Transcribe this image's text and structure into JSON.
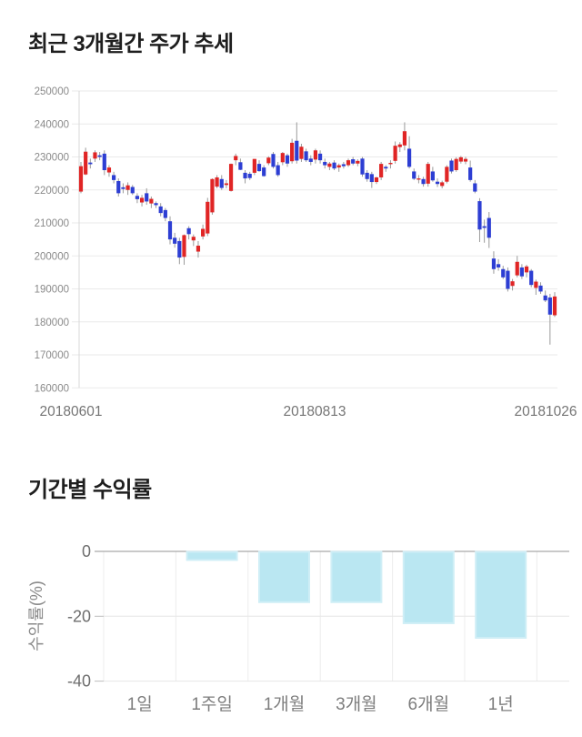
{
  "sections": {
    "price_trend_title": "최근 3개월간 주가 추세",
    "period_returns_title": "기간별 수익률"
  },
  "chart_data": [
    {
      "type": "candlestick",
      "title": "최근 3개월간 주가 추세",
      "ylim": [
        160000,
        250000
      ],
      "y_ticks": [
        250000,
        240000,
        230000,
        220000,
        210000,
        200000,
        190000,
        180000,
        170000,
        160000
      ],
      "x_tick_labels": [
        "20180601",
        "20180813",
        "20181026"
      ],
      "grid": true,
      "colors": {
        "up": "#e02525",
        "down": "#2d3ed3",
        "wick": "#9a9a9a",
        "grid": "#eaeaea",
        "axis": "#d8d8d8",
        "tick_text": "#8a8a8a",
        "x_label_text": "#757575"
      },
      "candles_ohlc": [
        [
          219500,
          228500,
          219000,
          227200
        ],
        [
          224700,
          232800,
          224500,
          231600
        ],
        [
          228300,
          229500,
          226500,
          227800
        ],
        [
          229500,
          232000,
          228500,
          231400
        ],
        [
          230500,
          231500,
          229000,
          230000
        ],
        [
          231000,
          232000,
          224500,
          226000
        ],
        [
          225300,
          227500,
          224000,
          226800
        ],
        [
          224500,
          225500,
          222000,
          223000
        ],
        [
          222700,
          223500,
          218000,
          219000
        ],
        [
          220800,
          222000,
          219000,
          220300
        ],
        [
          220000,
          222300,
          218500,
          221400
        ],
        [
          220900,
          221500,
          218500,
          219000
        ],
        [
          218200,
          219000,
          216000,
          217200
        ],
        [
          216200,
          218500,
          215000,
          217600
        ],
        [
          219000,
          220500,
          215500,
          216500
        ],
        [
          215900,
          218000,
          214500,
          217300
        ],
        [
          216000,
          216500,
          214500,
          215400
        ],
        [
          215000,
          216000,
          212000,
          213000
        ],
        [
          213900,
          214500,
          210500,
          211500
        ],
        [
          210500,
          212000,
          203500,
          205000
        ],
        [
          205500,
          207000,
          202500,
          203700
        ],
        [
          204500,
          205500,
          197500,
          199500
        ],
        [
          199700,
          206500,
          197300,
          206300
        ],
        [
          208400,
          209000,
          205000,
          206600
        ],
        [
          204700,
          206500,
          203000,
          205800
        ],
        [
          201300,
          204500,
          199500,
          203100
        ],
        [
          205900,
          209500,
          205000,
          208200
        ],
        [
          206800,
          217600,
          206000,
          216400
        ],
        [
          213200,
          223500,
          212500,
          223300
        ],
        [
          221000,
          224500,
          220500,
          223800
        ],
        [
          223300,
          224500,
          220000,
          220600
        ],
        [
          221500,
          223000,
          220500,
          222000
        ],
        [
          219700,
          228000,
          219500,
          227900
        ],
        [
          229000,
          231000,
          227500,
          230300
        ],
        [
          228400,
          229500,
          226000,
          226100
        ],
        [
          225200,
          226000,
          222000,
          223500
        ],
        [
          224900,
          225500,
          223000,
          223600
        ],
        [
          225200,
          229400,
          224500,
          229400
        ],
        [
          227900,
          229000,
          225500,
          225700
        ],
        [
          226800,
          227500,
          224000,
          224200
        ],
        [
          228100,
          230200,
          227500,
          229800
        ],
        [
          230900,
          231500,
          226500,
          227000
        ],
        [
          227500,
          228500,
          224000,
          224500
        ],
        [
          228400,
          231500,
          227500,
          231200
        ],
        [
          230500,
          231000,
          227000,
          228000
        ],
        [
          228700,
          235500,
          228000,
          234300
        ],
        [
          234900,
          240500,
          228000,
          228900
        ],
        [
          229400,
          234000,
          228500,
          233100
        ],
        [
          231700,
          232500,
          228500,
          229000
        ],
        [
          229500,
          230500,
          227500,
          228500
        ],
        [
          229200,
          232500,
          228000,
          232000
        ],
        [
          231000,
          232000,
          228000,
          229000
        ],
        [
          228500,
          229500,
          226500,
          227500
        ],
        [
          227000,
          228500,
          226000,
          228000
        ],
        [
          228300,
          229000,
          226000,
          226500
        ],
        [
          226800,
          228000,
          225500,
          227500
        ],
        [
          227800,
          228500,
          226500,
          227200
        ],
        [
          227500,
          229500,
          227000,
          229000
        ],
        [
          229300,
          230000,
          227500,
          228000
        ],
        [
          228000,
          229300,
          227200,
          228800
        ],
        [
          229500,
          230000,
          224000,
          224700
        ],
        [
          225200,
          226000,
          222500,
          223300
        ],
        [
          224800,
          225500,
          220600,
          222400
        ],
        [
          222400,
          224000,
          221800,
          223800
        ],
        [
          223800,
          228500,
          223000,
          227900
        ],
        [
          227000,
          227500,
          225500,
          226500
        ],
        [
          227900,
          229000,
          226500,
          228200
        ],
        [
          228800,
          234700,
          228000,
          233400
        ],
        [
          233000,
          234500,
          231500,
          233800
        ],
        [
          233500,
          240500,
          232000,
          237800
        ],
        [
          232500,
          236300,
          226500,
          227000
        ],
        [
          225600,
          226500,
          223000,
          223400
        ],
        [
          223500,
          224500,
          222000,
          223500
        ],
        [
          223300,
          224000,
          221000,
          221800
        ],
        [
          221900,
          228500,
          221000,
          227900
        ],
        [
          225600,
          227000,
          222500,
          222900
        ],
        [
          222500,
          223500,
          220900,
          221800
        ],
        [
          221200,
          222800,
          220500,
          222300
        ],
        [
          222500,
          227500,
          222000,
          227000
        ],
        [
          228900,
          229500,
          225000,
          225600
        ],
        [
          226000,
          229900,
          225500,
          229400
        ],
        [
          228600,
          230300,
          228000,
          229900
        ],
        [
          228600,
          230000,
          227800,
          229400
        ],
        [
          226800,
          228900,
          222500,
          223000
        ],
        [
          222000,
          223000,
          219000,
          219500
        ],
        [
          216600,
          217500,
          204200,
          208000
        ],
        [
          209000,
          211000,
          204000,
          208500
        ],
        [
          211500,
          213300,
          202400,
          205500
        ],
        [
          199200,
          201400,
          194600,
          196000
        ],
        [
          197500,
          199000,
          195500,
          196500
        ],
        [
          196000,
          197000,
          193000,
          193500
        ],
        [
          195500,
          196500,
          189200,
          190000
        ],
        [
          190900,
          193000,
          189500,
          192300
        ],
        [
          194100,
          200000,
          193500,
          198200
        ],
        [
          196500,
          197500,
          193000,
          193800
        ],
        [
          195000,
          197300,
          193500,
          196800
        ],
        [
          195500,
          196000,
          190500,
          191200
        ],
        [
          190300,
          192800,
          188200,
          192200
        ],
        [
          191000,
          192000,
          188500,
          189200
        ],
        [
          188000,
          189500,
          186000,
          186500
        ],
        [
          187400,
          188500,
          173100,
          182200
        ],
        [
          182000,
          189000,
          181500,
          187700
        ]
      ]
    },
    {
      "type": "bar",
      "title": "기간별 수익률",
      "categories": [
        "1일",
        "1주일",
        "1개월",
        "3개월",
        "6개월",
        "1년"
      ],
      "values": [
        0,
        -2.5,
        -15.5,
        -15.5,
        -22,
        -26.5
      ],
      "ylabel": "수익률(%)",
      "y_ticks": [
        0,
        -20,
        -40
      ],
      "ylim": [
        -40,
        0
      ],
      "grid": true,
      "colors": {
        "bar_fill": "#bae7f2",
        "bar_stroke": "#cfeef6",
        "zero_line": "#a9a9a9",
        "grid": "#e6e6e6",
        "separator": "#ececec",
        "tick_stub": "#bdbdbd",
        "tick_text": "#6e6e6e",
        "axis_label_text": "#8a8a8a",
        "category_text": "#7d7d7d"
      }
    }
  ]
}
